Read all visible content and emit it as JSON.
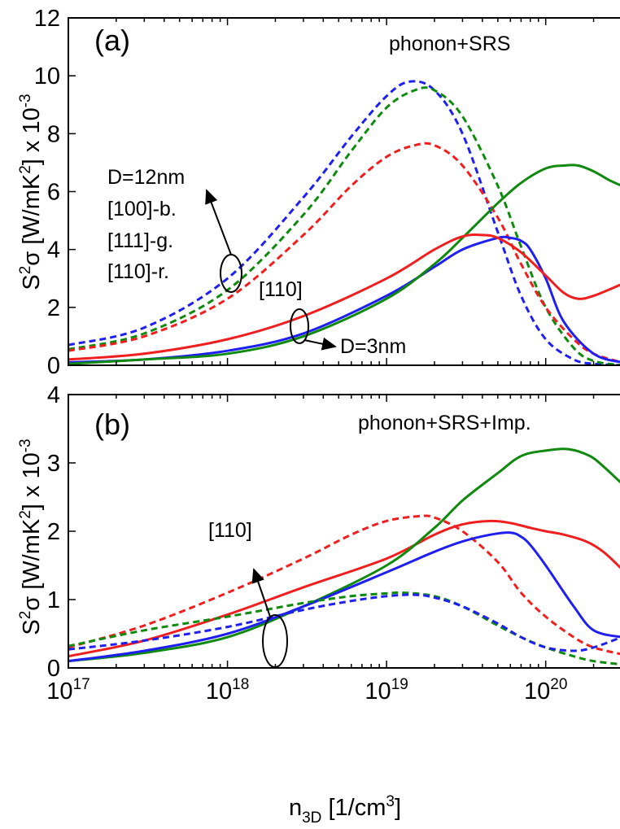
{
  "chart_data": [
    {
      "type": "line",
      "panel_label": "(a)",
      "title": "phonon+SRS",
      "x_scale": "log",
      "xlim": [
        1e+17,
        3e+20
      ],
      "ylim": [
        0,
        12
      ],
      "y_ticks": [
        0,
        2,
        4,
        6,
        8,
        10,
        12
      ],
      "y_tick_labels": [
        "0",
        "2",
        "4",
        "6",
        "8",
        "10",
        "12"
      ],
      "ylabel": {
        "pre": "S",
        "sup1": "2",
        "mid": "σ [W/mK",
        "sup2": "2",
        "post": "] x 10",
        "sup3": "-3"
      },
      "grid": false,
      "legend": "annotations inside plot",
      "colors": {
        "blue": "#1f1ff0",
        "green": "#0f8a0f",
        "red": "#f01f1f"
      },
      "series": [
        {
          "color": "blue",
          "style": "dashed",
          "x": [
            1e+17,
            3e+17,
            1e+18,
            3e+18,
            6e+18,
            1e+19,
            1.4e+19,
            2e+19,
            3e+19,
            5e+19,
            7e+19,
            1e+20,
            1.5e+20,
            2e+20,
            3e+20
          ],
          "y": [
            0.7,
            1.3,
            3.0,
            5.8,
            7.9,
            9.3,
            9.8,
            9.5,
            8.0,
            4.6,
            2.4,
            0.9,
            0.2,
            0.05,
            0.0
          ]
        },
        {
          "color": "green",
          "style": "dashed",
          "x": [
            1e+17,
            3e+17,
            1e+18,
            3e+18,
            6e+18,
            1e+19,
            1.5e+19,
            2e+19,
            3e+19,
            5e+19,
            7e+19,
            1e+20,
            1.5e+20,
            2e+20,
            3e+20
          ],
          "y": [
            0.55,
            1.1,
            2.6,
            5.2,
            7.4,
            8.9,
            9.5,
            9.5,
            8.6,
            6.2,
            4.1,
            2.0,
            0.6,
            0.15,
            0.0
          ]
        },
        {
          "color": "red",
          "style": "dashed",
          "x": [
            1e+17,
            3e+17,
            1e+18,
            3e+18,
            6e+18,
            1e+19,
            1.5e+19,
            2e+19,
            3e+19,
            5e+19,
            7e+19,
            1e+20,
            1.5e+20,
            2e+20,
            3e+20
          ],
          "y": [
            0.5,
            1.0,
            2.3,
            4.5,
            6.2,
            7.2,
            7.6,
            7.6,
            6.9,
            5.1,
            3.5,
            2.0,
            0.9,
            0.4,
            0.1
          ]
        },
        {
          "color": "blue",
          "style": "solid",
          "x": [
            1e+17,
            3e+17,
            1e+18,
            3e+18,
            1e+19,
            2e+19,
            3e+19,
            5e+19,
            6e+19,
            7e+19,
            8e+19,
            1e+20,
            1.3e+20,
            2e+20,
            3e+20
          ],
          "y": [
            0.1,
            0.2,
            0.5,
            1.1,
            2.4,
            3.4,
            4.0,
            4.4,
            4.4,
            4.3,
            4.0,
            3.0,
            1.5,
            0.4,
            0.1
          ]
        },
        {
          "color": "green",
          "style": "solid",
          "x": [
            1e+17,
            3e+17,
            1e+18,
            3e+18,
            1e+19,
            2e+19,
            3e+19,
            5e+19,
            7e+19,
            1e+20,
            1.3e+20,
            1.6e+20,
            2e+20,
            2.5e+20,
            3e+20
          ],
          "y": [
            0.05,
            0.2,
            0.4,
            1.0,
            2.3,
            3.5,
            4.4,
            5.6,
            6.3,
            6.8,
            6.9,
            6.9,
            6.7,
            6.4,
            6.2
          ]
        },
        {
          "color": "red",
          "style": "solid",
          "x": [
            1e+17,
            3e+17,
            1e+18,
            3e+18,
            1e+19,
            2e+19,
            3e+19,
            4e+19,
            5e+19,
            7e+19,
            1e+20,
            1.3e+20,
            1.6e+20,
            2e+20,
            3e+20
          ],
          "y": [
            0.2,
            0.4,
            0.9,
            1.7,
            3.0,
            4.0,
            4.45,
            4.5,
            4.4,
            3.9,
            3.1,
            2.5,
            2.3,
            2.4,
            2.8
          ]
        }
      ],
      "annotations": [
        "D=12nm",
        "[100]-b.",
        "[111]-g.",
        "[110]-r.",
        "[110]",
        "D=3nm"
      ]
    },
    {
      "type": "line",
      "panel_label": "(b)",
      "title": "phonon+SRS+Imp.",
      "x_scale": "log",
      "xlim": [
        1e+17,
        3e+20
      ],
      "ylim": [
        0,
        4
      ],
      "y_ticks": [
        0,
        1,
        2,
        3,
        4
      ],
      "y_tick_labels": [
        "0",
        "1",
        "2",
        "3",
        "4"
      ],
      "x_tick_labels": [
        {
          "base": "10",
          "exp": "17"
        },
        {
          "base": "10",
          "exp": "18"
        },
        {
          "base": "10",
          "exp": "19"
        },
        {
          "base": "10",
          "exp": "20"
        }
      ],
      "xlabel": {
        "pre": "n",
        "sub": "3D",
        "mid": " [1/cm",
        "sup": "3",
        "post": "]"
      },
      "ylabel": {
        "pre": "S",
        "sup1": "2",
        "mid": "σ [W/mK",
        "sup2": "2",
        "post": "] x 10",
        "sup3": "-3"
      },
      "grid": false,
      "legend": "annotations inside plot",
      "series": [
        {
          "color": "red",
          "style": "dashed",
          "x": [
            1e+17,
            3e+17,
            1e+18,
            3e+18,
            6e+18,
            1e+19,
            1.6e+19,
            2e+19,
            3e+19,
            5e+19,
            7e+19,
            1e+20,
            1.5e+20,
            2e+20,
            3e+20
          ],
          "y": [
            0.3,
            0.62,
            1.1,
            1.6,
            1.95,
            2.15,
            2.22,
            2.2,
            2.0,
            1.55,
            1.1,
            0.75,
            0.45,
            0.3,
            0.2
          ]
        },
        {
          "color": "red",
          "style": "solid",
          "x": [
            1e+17,
            3e+17,
            1e+18,
            3e+18,
            1e+19,
            2e+19,
            3e+19,
            4.5e+19,
            6e+19,
            8e+19,
            1e+20,
            1.3e+20,
            1.8e+20,
            2.3e+20,
            3e+20
          ],
          "y": [
            0.17,
            0.4,
            0.78,
            1.18,
            1.6,
            1.95,
            2.1,
            2.15,
            2.12,
            2.05,
            2.0,
            1.95,
            1.85,
            1.7,
            1.45
          ]
        },
        {
          "color": "green",
          "style": "solid",
          "x": [
            1e+17,
            3e+17,
            1e+18,
            3e+18,
            1e+19,
            2e+19,
            3e+19,
            5e+19,
            7e+19,
            1e+20,
            1.4e+20,
            1.9e+20,
            2.3e+20,
            2.7e+20,
            3e+20
          ],
          "y": [
            0.1,
            0.22,
            0.45,
            0.9,
            1.5,
            2.05,
            2.45,
            2.85,
            3.1,
            3.18,
            3.2,
            3.1,
            2.95,
            2.8,
            2.7
          ]
        },
        {
          "color": "blue",
          "style": "solid",
          "x": [
            1e+17,
            3e+17,
            1e+18,
            3e+18,
            1e+19,
            2e+19,
            3e+19,
            4.5e+19,
            6e+19,
            7e+19,
            8e+19,
            1e+20,
            1.5e+20,
            2e+20,
            3e+20
          ],
          "y": [
            0.1,
            0.25,
            0.5,
            0.9,
            1.4,
            1.7,
            1.85,
            1.95,
            1.98,
            1.92,
            1.8,
            1.5,
            0.9,
            0.55,
            0.45
          ]
        },
        {
          "color": "green",
          "style": "dashed",
          "x": [
            1e+17,
            3e+17,
            1e+18,
            3e+18,
            6e+18,
            1e+19,
            1.3e+19,
            2e+19,
            3e+19,
            5e+19,
            7e+19,
            1e+20,
            1.5e+20,
            2e+20,
            3e+20
          ],
          "y": [
            0.32,
            0.55,
            0.75,
            0.95,
            1.05,
            1.09,
            1.1,
            1.05,
            0.9,
            0.62,
            0.45,
            0.3,
            0.17,
            0.1,
            0.05
          ]
        },
        {
          "color": "blue",
          "style": "dashed",
          "x": [
            1e+17,
            3e+17,
            1e+18,
            3e+18,
            6e+18,
            1e+19,
            1.5e+19,
            2e+19,
            3e+19,
            5e+19,
            7e+19,
            1e+20,
            1.5e+20,
            2e+20,
            3e+20
          ],
          "y": [
            0.27,
            0.4,
            0.6,
            0.85,
            0.98,
            1.05,
            1.07,
            1.03,
            0.9,
            0.65,
            0.45,
            0.3,
            0.25,
            0.3,
            0.45
          ]
        }
      ],
      "annotations": [
        "[110]"
      ]
    }
  ]
}
